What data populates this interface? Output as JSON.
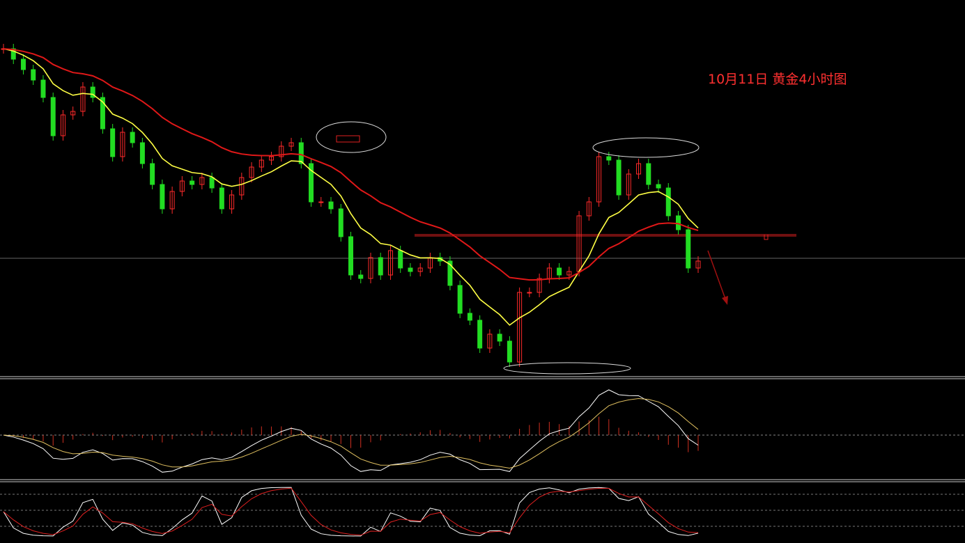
{
  "chart_data": {
    "type": "candlestick",
    "title": "10月11日 黄金4小时图",
    "up_color": "#ff2a2a",
    "down_color": "#22dd22",
    "close": [
      470,
      455,
      440,
      425,
      400,
      345,
      375,
      380,
      415,
      400,
      355,
      315,
      350,
      335,
      305,
      275,
      240,
      265,
      280,
      275,
      285,
      270,
      240,
      260,
      285,
      300,
      310,
      315,
      330,
      335,
      305,
      250,
      250,
      240,
      200,
      145,
      140,
      170,
      145,
      180,
      155,
      150,
      155,
      170,
      165,
      130,
      90,
      80,
      40,
      60,
      50,
      20,
      120,
      120,
      140,
      155,
      145,
      150,
      230,
      250,
      315,
      310,
      260,
      290,
      305,
      275,
      270,
      230,
      210,
      155,
      165
    ]
  }
}
